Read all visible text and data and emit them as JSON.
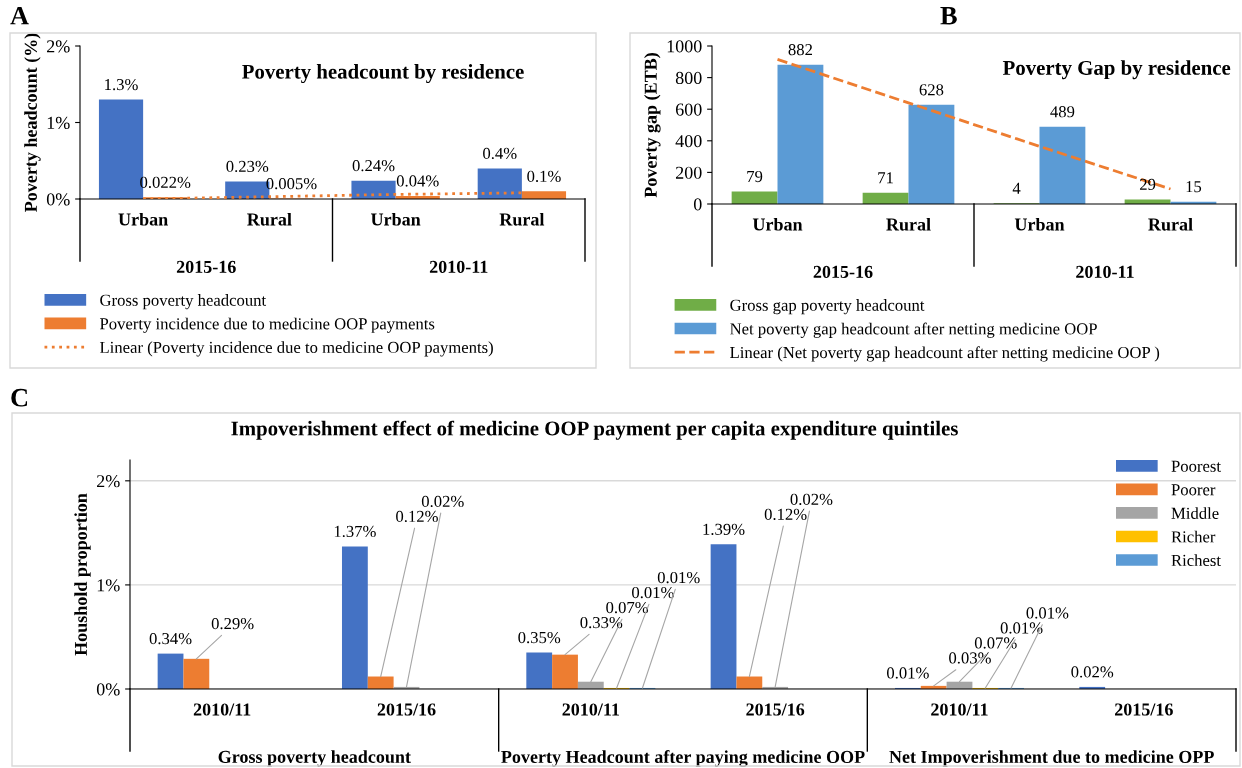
{
  "chart_data": [
    {
      "type": "bar",
      "title": "Poverty headcount by residence",
      "ylabel": "Poverty headcount (%)",
      "categories": [
        "Urban",
        "Rural",
        "Urban",
        "Rural"
      ],
      "series": [
        {
          "name": "Gross poverty headcount",
          "color": "#4472c4",
          "values": [
            1.3,
            0.23,
            0.24,
            0.4
          ],
          "value_labels": [
            "1.3%",
            "0.23%",
            "0.24%",
            "0.4%"
          ]
        },
        {
          "name": "Poverty incidence due to medicine OOP payments",
          "color": "#ed7d31",
          "values": [
            0.022,
            0.005,
            0.04,
            0.1
          ],
          "value_labels": [
            "0.022%",
            "0.005%",
            "0.04%",
            "0.1%"
          ]
        },
        {
          "name": "Linear (Poverty incidence due to medicine OOP payments)",
          "type": "line",
          "color": "#ed7d31",
          "line_style": "dotted",
          "values": [
            0.0,
            0.03,
            0.06,
            0.08
          ]
        }
      ],
      "ylim": [
        0,
        2
      ],
      "yticks": [
        {
          "value": 0,
          "label": "0%"
        },
        {
          "value": 1,
          "label": "1%"
        },
        {
          "value": 2,
          "label": "2%"
        }
      ],
      "legend": "bottom",
      "annotations": [
        "A",
        "2015-16",
        "2010-11"
      ]
    },
    {
      "type": "bar",
      "title": "Poverty Gap by residence",
      "ylabel": "Poverty gap (ETB)",
      "categories": [
        "Urban",
        "Rural",
        "Urban",
        "Rural"
      ],
      "series": [
        {
          "name": "Gross gap poverty headcount",
          "color": "#70ad47",
          "values": [
            79,
            71,
            4,
            29
          ],
          "value_labels": [
            "79",
            "71",
            "4",
            "29"
          ]
        },
        {
          "name": "Net poverty gap headcount after netting medicine OOP",
          "color": "#5b9bd5",
          "values": [
            882,
            628,
            489,
            15
          ],
          "value_labels": [
            "882",
            "628",
            "489",
            "15"
          ]
        },
        {
          "name": "Linear (Net poverty gap headcount after netting medicine OOP )",
          "type": "line",
          "color": "#ed7d31",
          "line_style": "dashed",
          "values": [
            915,
            640,
            365,
            95
          ]
        }
      ],
      "ylim": [
        0,
        1000
      ],
      "yticks": [
        0,
        200,
        400,
        600,
        800,
        1000
      ],
      "legend": "bottom",
      "annotations": [
        "B",
        "2015-16",
        "2010-11"
      ]
    },
    {
      "type": "bar",
      "title": "Impoverishment effect of medicine OOP payment per capita expenditure quintiles",
      "ylabel": "Houshold proportion",
      "categories": [
        "2010/11",
        "2015/16",
        "2010/11",
        "2015/16",
        "2010/11",
        "2015/16"
      ],
      "series": [
        {
          "name": "Poorest",
          "color": "#4472c4",
          "values": [
            0.34,
            1.37,
            0.35,
            1.39,
            0.01,
            0.02
          ],
          "value_labels": [
            "0.34%",
            "1.37%",
            "0.35%",
            "1.39%",
            "0.01%",
            "0.02%"
          ]
        },
        {
          "name": "Poorer",
          "color": "#ed7d31",
          "values": [
            0.29,
            0.12,
            0.33,
            0.12,
            0.03,
            null
          ],
          "value_labels": [
            "0.29%",
            "0.12%",
            "0.33%",
            "0.12%",
            "0.03%",
            null
          ]
        },
        {
          "name": "Middle",
          "color": "#a5a5a5",
          "values": [
            null,
            0.02,
            0.07,
            0.02,
            0.07,
            null
          ],
          "value_labels": [
            null,
            "0.02%",
            "0.07%",
            "0.02%",
            "0.07%",
            null
          ]
        },
        {
          "name": "Richer",
          "color": "#ffc000",
          "values": [
            null,
            null,
            0.01,
            null,
            0.01,
            null
          ],
          "value_labels": [
            null,
            null,
            "0.01%",
            null,
            "0.01%",
            null
          ]
        },
        {
          "name": "Richest",
          "color": "#5b9bd5",
          "values": [
            null,
            null,
            0.01,
            null,
            0.01,
            null
          ],
          "value_labels": [
            null,
            null,
            "0.01%",
            null,
            "0.01%",
            null
          ]
        }
      ],
      "ylim": [
        0,
        2.2
      ],
      "yticks": [
        {
          "value": 0,
          "label": "0%"
        },
        {
          "value": 1,
          "label": "1%"
        },
        {
          "value": 2,
          "label": "2%"
        }
      ],
      "grid": "y",
      "legend": "top right",
      "annotations": [
        "C",
        "Gross poverty headcount",
        "Poverty Headcount after paying medicine OOP",
        "Net Impoverishment due to medicine OPP"
      ]
    }
  ]
}
